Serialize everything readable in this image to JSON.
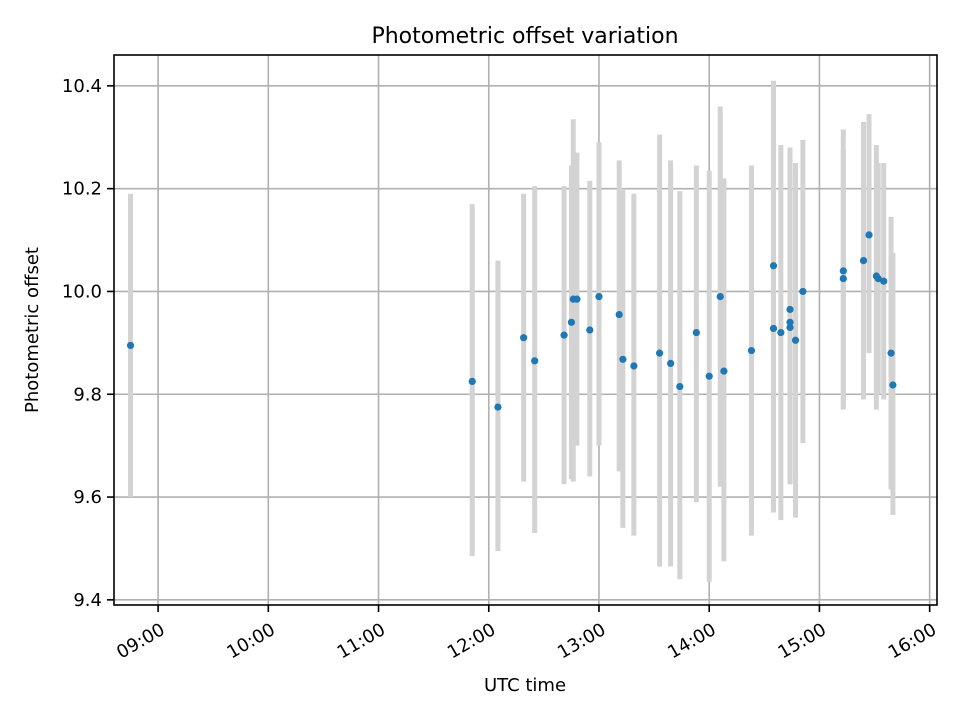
{
  "chart_data": {
    "type": "scatter",
    "title": "Photometric offset variation",
    "xlabel": "UTC time",
    "ylabel": "Photometric offset",
    "xlim": [
      "08:36",
      "16:04"
    ],
    "ylim": [
      9.39,
      10.46
    ],
    "x_ticks": [
      "09:00",
      "10:00",
      "11:00",
      "12:00",
      "13:00",
      "14:00",
      "15:00",
      "16:00"
    ],
    "y_ticks": [
      9.4,
      9.6,
      9.8,
      10.0,
      10.2,
      10.4
    ],
    "y_tick_labels": [
      "9.4",
      "9.6",
      "9.8",
      "10.0",
      "10.2",
      "10.4"
    ],
    "grid": true,
    "marker_color": "#1f77b4",
    "errorbar_color": "#d3d3d3",
    "points": [
      {
        "t": "08:45",
        "y": 9.895,
        "lo": 9.6,
        "hi": 10.19
      },
      {
        "t": "11:51",
        "y": 9.825,
        "lo": 9.485,
        "hi": 10.17
      },
      {
        "t": "12:05",
        "y": 9.775,
        "lo": 9.495,
        "hi": 10.06
      },
      {
        "t": "12:19",
        "y": 9.91,
        "lo": 9.63,
        "hi": 10.19
      },
      {
        "t": "12:25",
        "y": 9.865,
        "lo": 9.53,
        "hi": 10.205
      },
      {
        "t": "12:41",
        "y": 9.915,
        "lo": 9.625,
        "hi": 10.205
      },
      {
        "t": "12:45",
        "y": 9.94,
        "lo": 9.635,
        "hi": 10.245
      },
      {
        "t": "12:46",
        "y": 9.985,
        "lo": 9.63,
        "hi": 10.335
      },
      {
        "t": "12:48",
        "y": 9.985,
        "lo": 9.7,
        "hi": 10.27
      },
      {
        "t": "12:55",
        "y": 9.925,
        "lo": 9.64,
        "hi": 10.215
      },
      {
        "t": "13:00",
        "y": 9.99,
        "lo": 9.7,
        "hi": 10.29
      },
      {
        "t": "13:11",
        "y": 9.955,
        "lo": 9.65,
        "hi": 10.255
      },
      {
        "t": "13:13",
        "y": 9.868,
        "lo": 9.54,
        "hi": 10.2
      },
      {
        "t": "13:19",
        "y": 9.855,
        "lo": 9.525,
        "hi": 10.19
      },
      {
        "t": "13:33",
        "y": 9.88,
        "lo": 9.465,
        "hi": 10.305
      },
      {
        "t": "13:39",
        "y": 9.86,
        "lo": 9.465,
        "hi": 10.255
      },
      {
        "t": "13:44",
        "y": 9.815,
        "lo": 9.44,
        "hi": 10.195
      },
      {
        "t": "13:53",
        "y": 9.92,
        "lo": 9.59,
        "hi": 10.245
      },
      {
        "t": "14:00",
        "y": 9.835,
        "lo": 9.435,
        "hi": 10.235
      },
      {
        "t": "14:06",
        "y": 9.99,
        "lo": 9.62,
        "hi": 10.36
      },
      {
        "t": "14:08",
        "y": 9.845,
        "lo": 9.475,
        "hi": 10.22
      },
      {
        "t": "14:23",
        "y": 9.885,
        "lo": 9.525,
        "hi": 10.245
      },
      {
        "t": "14:35",
        "y": 10.05,
        "lo": 9.69,
        "hi": 10.41
      },
      {
        "t": "14:35",
        "y": 9.928,
        "lo": 9.57,
        "hi": 10.28
      },
      {
        "t": "14:39",
        "y": 9.92,
        "lo": 9.555,
        "hi": 10.285
      },
      {
        "t": "14:44",
        "y": 9.965,
        "lo": 9.65,
        "hi": 10.28
      },
      {
        "t": "14:44",
        "y": 9.94,
        "lo": 9.63,
        "hi": 10.25
      },
      {
        "t": "14:44",
        "y": 9.93,
        "lo": 9.625,
        "hi": 10.235
      },
      {
        "t": "14:47",
        "y": 9.905,
        "lo": 9.56,
        "hi": 10.25
      },
      {
        "t": "14:51",
        "y": 10.0,
        "lo": 9.705,
        "hi": 10.295
      },
      {
        "t": "15:13",
        "y": 10.04,
        "lo": 9.77,
        "hi": 10.315
      },
      {
        "t": "15:13",
        "y": 10.025,
        "lo": 9.775,
        "hi": 10.275
      },
      {
        "t": "15:24",
        "y": 10.06,
        "lo": 9.79,
        "hi": 10.33
      },
      {
        "t": "15:27",
        "y": 10.11,
        "lo": 9.88,
        "hi": 10.345
      },
      {
        "t": "15:31",
        "y": 10.03,
        "lo": 9.77,
        "hi": 10.285
      },
      {
        "t": "15:32",
        "y": 10.025,
        "lo": 9.8,
        "hi": 10.25
      },
      {
        "t": "15:35",
        "y": 10.02,
        "lo": 9.79,
        "hi": 10.25
      },
      {
        "t": "15:39",
        "y": 9.88,
        "lo": 9.615,
        "hi": 10.145
      },
      {
        "t": "15:40",
        "y": 9.818,
        "lo": 9.565,
        "hi": 10.075
      }
    ]
  }
}
